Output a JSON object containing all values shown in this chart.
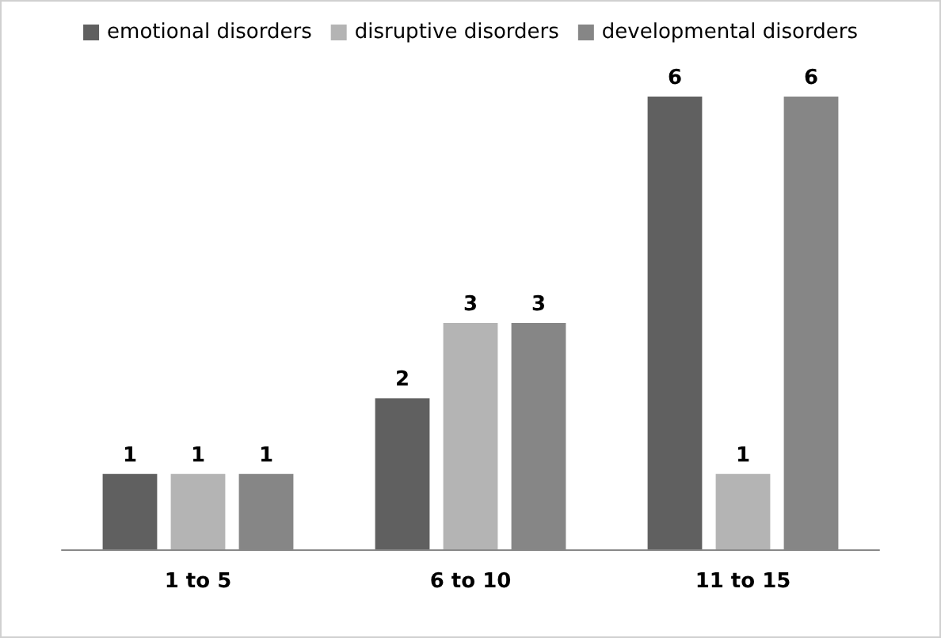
{
  "chart_data": {
    "type": "bar",
    "categories": [
      "1 to 5",
      "6 to 10",
      "11 to 15"
    ],
    "series": [
      {
        "name": "emotional disorders",
        "color": "#606060",
        "values": [
          1,
          2,
          6
        ]
      },
      {
        "name": "disruptive disorders",
        "color": "#b4b4b4",
        "values": [
          1,
          3,
          1
        ]
      },
      {
        "name": "developmental disorders",
        "color": "#868686",
        "values": [
          1,
          3,
          6
        ]
      }
    ],
    "data_labels": true,
    "legend": "top",
    "tick_labels": "x"
  }
}
